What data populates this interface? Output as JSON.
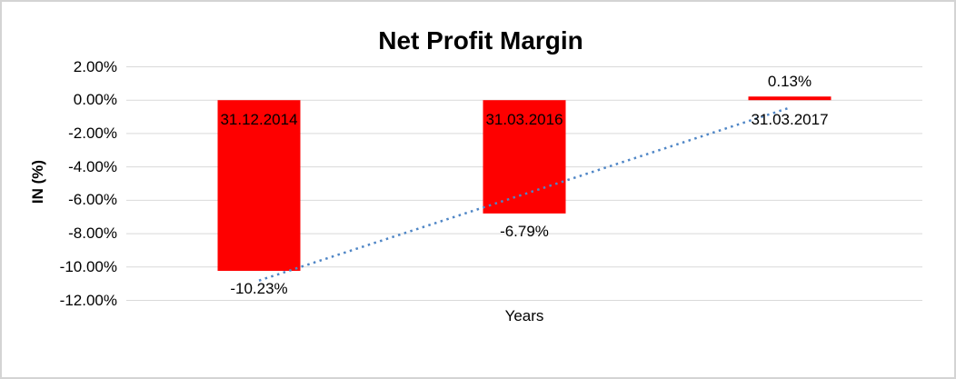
{
  "chart_data": {
    "type": "bar",
    "title": "Net Profit Margin",
    "xlabel": "Years",
    "ylabel": "IN (%)",
    "categories": [
      "31.12.2014",
      "31.03.2016",
      "31.03.2017"
    ],
    "values": [
      -10.23,
      -6.79,
      0.13
    ],
    "data_labels": [
      "-10.23%",
      "-6.79%",
      "0.13%"
    ],
    "ylim": [
      -12,
      2
    ],
    "ytick_step": 2,
    "ytick_labels": [
      "2.00%",
      "0.00%",
      "-2.00%",
      "-4.00%",
      "-6.00%",
      "-8.00%",
      "-10.00%",
      "-12.00%"
    ],
    "grid": true,
    "legend": "none",
    "bar_color": "#fe0000",
    "gridline_color": "#d9d9d9",
    "text_color": "#000000",
    "frame_border_color": "#d4d4d4",
    "trendline": {
      "style": "dotted",
      "color": "#4f86c6",
      "start_value": -10.81,
      "end_value": -0.45
    }
  }
}
